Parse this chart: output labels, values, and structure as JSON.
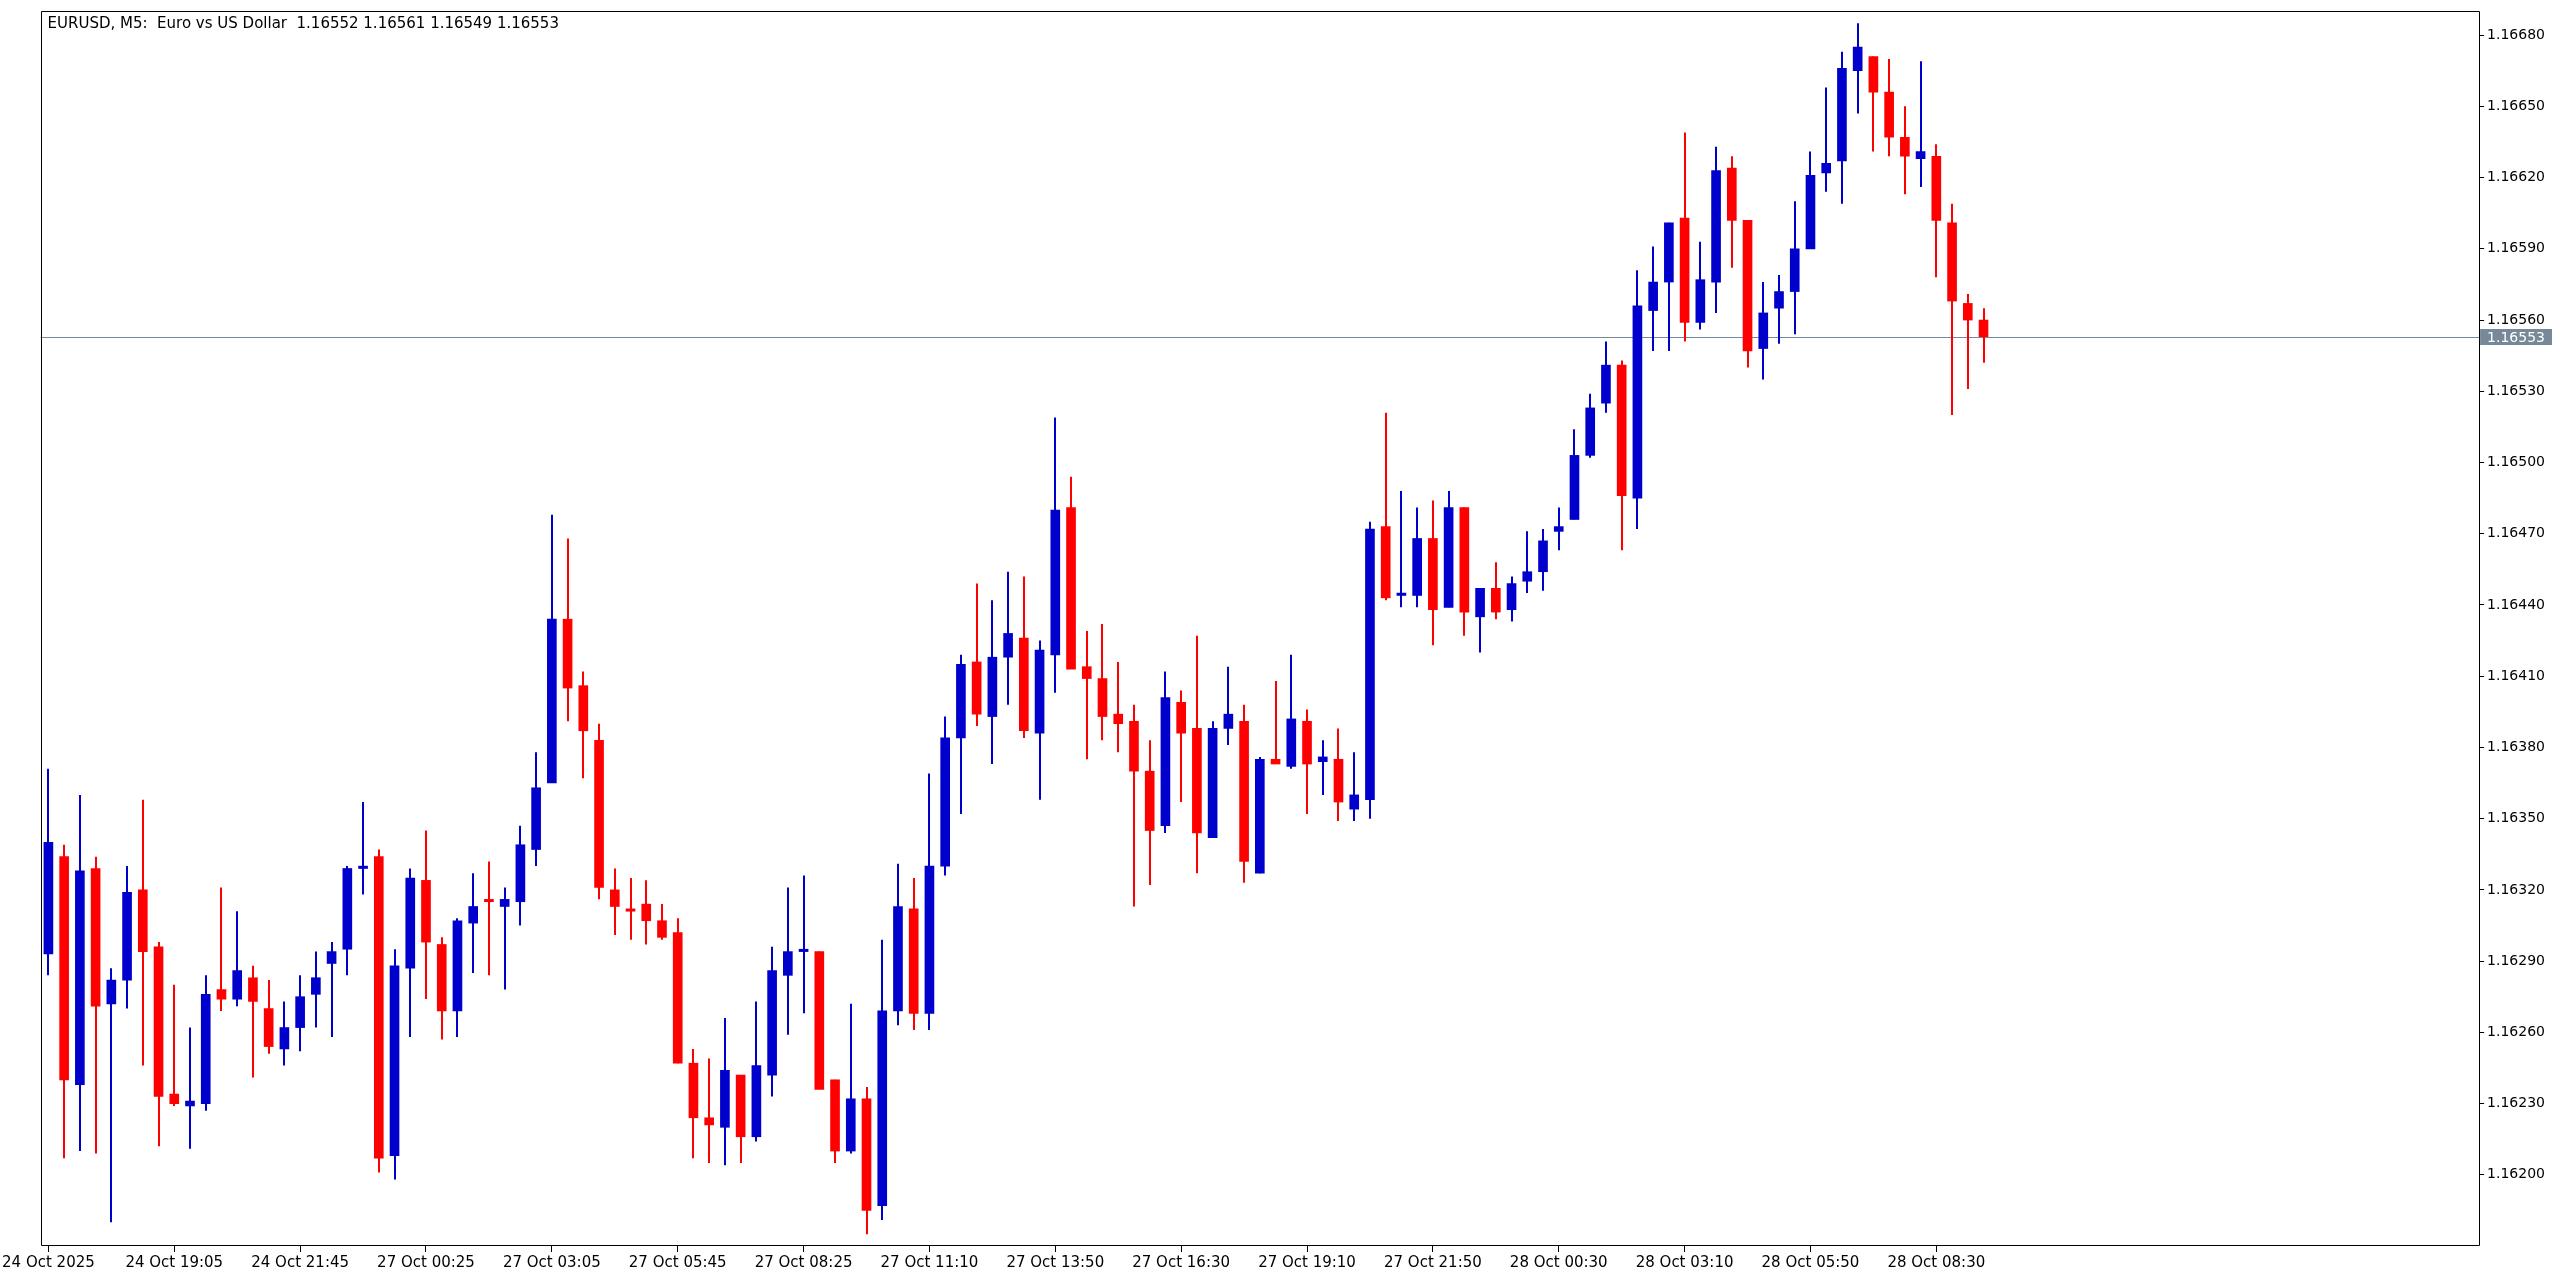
{
  "chart_data": {
    "type": "candlestick",
    "title": "EURUSD, M5:  Euro vs US Dollar  1.16552 1.16561 1.16549 1.16553",
    "categories": [
      "24 Oct 2025",
      null,
      null,
      null,
      null,
      null,
      null,
      null,
      "24 Oct 19:05",
      null,
      null,
      null,
      null,
      null,
      null,
      null,
      "24 Oct 21:45",
      null,
      null,
      null,
      null,
      null,
      null,
      null,
      "27 Oct 00:25",
      null,
      null,
      null,
      null,
      null,
      null,
      null,
      "27 Oct 03:05",
      null,
      null,
      null,
      null,
      null,
      null,
      null,
      "27 Oct 05:45",
      null,
      null,
      null,
      null,
      null,
      null,
      null,
      "27 Oct 08:25",
      null,
      null,
      null,
      null,
      null,
      null,
      null,
      "27 Oct 11:10",
      null,
      null,
      null,
      null,
      null,
      null,
      null,
      "27 Oct 13:50",
      null,
      null,
      null,
      null,
      null,
      null,
      null,
      "27 Oct 16:30",
      null,
      null,
      null,
      null,
      null,
      null,
      null,
      "27 Oct 19:10",
      null,
      null,
      null,
      null,
      null,
      null,
      null,
      "27 Oct 21:50",
      null,
      null,
      null,
      null,
      null,
      null,
      null,
      "28 Oct 00:30",
      null,
      null,
      null,
      null,
      null,
      null,
      null,
      "28 Oct 03:10",
      null,
      null,
      null,
      null,
      null,
      null,
      null,
      "28 Oct 05:50",
      null,
      null,
      null,
      null,
      null,
      null,
      null,
      "28 Oct 08:30",
      null,
      null,
      null,
      null,
      null,
      null,
      null,
      null,
      null,
      null,
      null,
      null,
      null,
      null,
      null,
      null,
      null,
      null,
      null,
      null,
      null,
      null,
      null,
      null,
      null,
      null,
      null,
      null,
      null,
      null,
      null,
      null,
      null,
      null
    ],
    "ohlc": [
      [
        1.16293,
        1.16371,
        1.16284,
        1.1634
      ],
      [
        1.16334,
        1.16339,
        1.16207,
        1.1624
      ],
      [
        1.16238,
        1.1636,
        1.1621,
        1.16328
      ],
      [
        1.16329,
        1.16334,
        1.16209,
        1.16271
      ],
      [
        1.16272,
        1.16287,
        1.1618,
        1.16282
      ],
      [
        1.16282,
        1.1633,
        1.1627,
        1.16319
      ],
      [
        1.1632,
        1.16358,
        1.16246,
        1.16294
      ],
      [
        1.16296,
        1.16298,
        1.16212,
        1.16233
      ],
      [
        1.16234,
        1.1628,
        1.16229,
        1.1623
      ],
      [
        1.16229,
        1.16262,
        1.16211,
        1.16231
      ],
      [
        1.1623,
        1.16284,
        1.16227,
        1.16276
      ],
      [
        1.16278,
        1.16321,
        1.16269,
        1.16274
      ],
      [
        1.16274,
        1.16311,
        1.16271,
        1.16286
      ],
      [
        1.16283,
        1.16288,
        1.16241,
        1.16273
      ],
      [
        1.1627,
        1.16282,
        1.16251,
        1.16254
      ],
      [
        1.16253,
        1.16273,
        1.16246,
        1.16262
      ],
      [
        1.16262,
        1.16284,
        1.16252,
        1.16275
      ],
      [
        1.16276,
        1.16294,
        1.16262,
        1.16283
      ],
      [
        1.16289,
        1.16298,
        1.16258,
        1.16294
      ],
      [
        1.16295,
        1.1633,
        1.16284,
        1.16329
      ],
      [
        1.16329,
        1.16357,
        1.16318,
        1.1633
      ],
      [
        1.16334,
        1.16337,
        1.16201,
        1.16207
      ],
      [
        1.16208,
        1.16295,
        1.16198,
        1.16288
      ],
      [
        1.16287,
        1.16329,
        1.16258,
        1.16325
      ],
      [
        1.16324,
        1.16345,
        1.16274,
        1.16298
      ],
      [
        1.16297,
        1.163,
        1.16257,
        1.16269
      ],
      [
        1.16269,
        1.16308,
        1.16258,
        1.16307
      ],
      [
        1.16306,
        1.16327,
        1.16285,
        1.16313
      ],
      [
        1.16316,
        1.16332,
        1.16284,
        1.16315
      ],
      [
        1.16313,
        1.16321,
        1.16278,
        1.16316
      ],
      [
        1.16315,
        1.16347,
        1.16305,
        1.16339
      ],
      [
        1.16337,
        1.16378,
        1.1633,
        1.16363
      ],
      [
        1.16365,
        1.16478,
        1.16365,
        1.16434
      ],
      [
        1.16434,
        1.16468,
        1.16391,
        1.16405
      ],
      [
        1.16406,
        1.16412,
        1.16367,
        1.16387
      ],
      [
        1.16383,
        1.1639,
        1.16316,
        1.16321
      ],
      [
        1.1632,
        1.16329,
        1.16301,
        1.16313
      ],
      [
        1.16312,
        1.16325,
        1.16299,
        1.16311
      ],
      [
        1.16314,
        1.16324,
        1.16297,
        1.16307
      ],
      [
        1.16307,
        1.16314,
        1.16299,
        1.163
      ],
      [
        1.16302,
        1.16308,
        1.16247,
        1.16247
      ],
      [
        1.16247,
        1.16253,
        1.16207,
        1.16224
      ],
      [
        1.16224,
        1.16249,
        1.16205,
        1.16221
      ],
      [
        1.1622,
        1.16266,
        1.16204,
        1.16244
      ],
      [
        1.16242,
        1.16242,
        1.16205,
        1.16216
      ],
      [
        1.16216,
        1.16273,
        1.16214,
        1.16246
      ],
      [
        1.16242,
        1.16296,
        1.16233,
        1.16286
      ],
      [
        1.16284,
        1.16321,
        1.16259,
        1.16294
      ],
      [
        1.16294,
        1.16326,
        1.16268,
        1.16295
      ],
      [
        1.16294,
        1.16294,
        1.16236,
        1.16236
      ],
      [
        1.1624,
        1.1624,
        1.16205,
        1.1621
      ],
      [
        1.1621,
        1.16272,
        1.16209,
        1.16232
      ],
      [
        1.16232,
        1.16237,
        1.16175,
        1.16185
      ],
      [
        1.16187,
        1.16299,
        1.16181,
        1.16269
      ],
      [
        1.16269,
        1.16331,
        1.16263,
        1.16313
      ],
      [
        1.16312,
        1.16325,
        1.16261,
        1.16268
      ],
      [
        1.16268,
        1.16369,
        1.16261,
        1.1633
      ],
      [
        1.1633,
        1.16393,
        1.16326,
        1.16384
      ],
      [
        1.16384,
        1.16419,
        1.16352,
        1.16415
      ],
      [
        1.16416,
        1.16449,
        1.16389,
        1.16394
      ],
      [
        1.16393,
        1.16442,
        1.16373,
        1.16418
      ],
      [
        1.16418,
        1.16454,
        1.16398,
        1.16428
      ],
      [
        1.16426,
        1.16452,
        1.16384,
        1.16387
      ],
      [
        1.16386,
        1.16425,
        1.16358,
        1.16421
      ],
      [
        1.16419,
        1.16519,
        1.16403,
        1.1648
      ],
      [
        1.16481,
        1.16494,
        1.16413,
        1.16413
      ],
      [
        1.16414,
        1.16429,
        1.16375,
        1.16409
      ],
      [
        1.16409,
        1.16432,
        1.16383,
        1.16393
      ],
      [
        1.16394,
        1.16416,
        1.16378,
        1.1639
      ],
      [
        1.16391,
        1.16398,
        1.16313,
        1.1637
      ],
      [
        1.1637,
        1.16383,
        1.16322,
        1.16345
      ],
      [
        1.16347,
        1.16412,
        1.16344,
        1.16401
      ],
      [
        1.16399,
        1.16404,
        1.16357,
        1.16386
      ],
      [
        1.16388,
        1.16427,
        1.16327,
        1.16344
      ],
      [
        1.16342,
        1.16391,
        1.16342,
        1.16388
      ],
      [
        1.16388,
        1.16414,
        1.16381,
        1.16394
      ],
      [
        1.16391,
        1.16398,
        1.16323,
        1.16332
      ],
      [
        1.16327,
        1.16376,
        1.16327,
        1.16375
      ],
      [
        1.16375,
        1.16408,
        1.16373,
        1.16373
      ],
      [
        1.16372,
        1.16419,
        1.16371,
        1.16392
      ],
      [
        1.16391,
        1.16396,
        1.16352,
        1.16373
      ],
      [
        1.16374,
        1.16383,
        1.1636,
        1.16376
      ],
      [
        1.16375,
        1.16388,
        1.16349,
        1.16357
      ],
      [
        1.16354,
        1.16378,
        1.16349,
        1.1636
      ],
      [
        1.16358,
        1.16475,
        1.1635,
        1.16472
      ],
      [
        1.16473,
        1.16521,
        1.16442,
        1.16443
      ],
      [
        1.16444,
        1.16488,
        1.16439,
        1.16445
      ],
      [
        1.16444,
        1.16481,
        1.16439,
        1.16468
      ],
      [
        1.16468,
        1.16484,
        1.16423,
        1.16438
      ],
      [
        1.16439,
        1.16488,
        1.16439,
        1.16481
      ],
      [
        1.16481,
        1.16481,
        1.16427,
        1.16437
      ],
      [
        1.16435,
        1.16447,
        1.1642,
        1.16447
      ],
      [
        1.16447,
        1.16458,
        1.16434,
        1.16437
      ],
      [
        1.16438,
        1.16452,
        1.16433,
        1.16449
      ],
      [
        1.1645,
        1.16471,
        1.16445,
        1.16454
      ],
      [
        1.16454,
        1.16472,
        1.16446,
        1.16467
      ],
      [
        1.16471,
        1.16481,
        1.16463,
        1.16473
      ],
      [
        1.16476,
        1.16514,
        1.16476,
        1.16503
      ],
      [
        1.16503,
        1.16529,
        1.16502,
        1.16523
      ],
      [
        1.16525,
        1.16551,
        1.16521,
        1.16541
      ],
      [
        1.16541,
        1.16543,
        1.16463,
        1.16486
      ],
      [
        1.16485,
        1.16581,
        1.16472,
        1.16566
      ],
      [
        1.16564,
        1.16591,
        1.16547,
        1.16576
      ],
      [
        1.16576,
        1.16601,
        1.16547,
        1.16601
      ],
      [
        1.16603,
        1.16639,
        1.16551,
        1.16559
      ],
      [
        1.16559,
        1.16593,
        1.16556,
        1.16577
      ],
      [
        1.16576,
        1.16633,
        1.16563,
        1.16623
      ],
      [
        1.16624,
        1.16629,
        1.16582,
        1.16602
      ],
      [
        1.16602,
        1.16602,
        1.1654,
        1.16547
      ],
      [
        1.16548,
        1.16576,
        1.16535,
        1.16563
      ],
      [
        1.16565,
        1.16579,
        1.1655,
        1.16572
      ],
      [
        1.16572,
        1.1661,
        1.16554,
        1.1659
      ],
      [
        1.1659,
        1.16631,
        1.1659,
        1.16621
      ],
      [
        1.16622,
        1.16658,
        1.16614,
        1.16626
      ],
      [
        1.16627,
        1.16673,
        1.16609,
        1.16666
      ],
      [
        1.16665,
        1.16685,
        1.16647,
        1.16675
      ],
      [
        1.16671,
        1.16671,
        1.16631,
        1.16656
      ],
      [
        1.16656,
        1.1667,
        1.16629,
        1.16637
      ],
      [
        1.16637,
        1.1665,
        1.16613,
        1.16629
      ],
      [
        1.16628,
        1.16669,
        1.16616,
        1.16631
      ],
      [
        1.16629,
        1.16634,
        1.16578,
        1.16602
      ],
      [
        1.16601,
        1.16609,
        1.1652,
        1.16568
      ],
      [
        1.16567,
        1.16571,
        1.16531,
        1.1656
      ],
      [
        1.1656,
        1.16565,
        1.16542,
        1.16553
      ],
      null,
      null,
      null,
      null,
      null,
      null,
      null,
      null,
      null,
      null,
      null,
      null,
      null,
      null,
      null,
      null,
      null,
      null,
      null,
      null,
      null,
      null,
      null,
      null,
      null,
      null,
      null,
      null,
      null,
      null,
      null
    ],
    "colors": [
      "#0000cd",
      "#ff0000",
      "#0000cd",
      "#ff0000",
      "#0000cd",
      "#0000cd",
      "#ff0000",
      "#ff0000",
      "#ff0000",
      "#0000cd",
      "#0000cd",
      "#ff0000",
      "#0000cd",
      "#ff0000",
      "#ff0000",
      "#0000cd",
      "#0000cd",
      "#0000cd",
      "#0000cd",
      "#0000cd",
      "#0000cd",
      "#ff0000",
      "#0000cd",
      "#0000cd",
      "#ff0000",
      "#ff0000",
      "#0000cd",
      "#0000cd",
      "#ff0000",
      "#0000cd",
      "#0000cd",
      "#0000cd",
      "#0000cd",
      "#ff0000",
      "#ff0000",
      "#ff0000",
      "#ff0000",
      "#ff0000",
      "#ff0000",
      "#ff0000",
      "#ff0000",
      "#ff0000",
      "#ff0000",
      "#0000cd",
      "#ff0000",
      "#0000cd",
      "#0000cd",
      "#0000cd",
      "#0000cd",
      "#ff0000",
      "#ff0000",
      "#0000cd",
      "#ff0000",
      "#0000cd",
      "#0000cd",
      "#ff0000",
      "#0000cd",
      "#0000cd",
      "#0000cd",
      "#ff0000",
      "#0000cd",
      "#0000cd",
      "#ff0000",
      "#0000cd",
      "#0000cd",
      "#ff0000",
      "#ff0000",
      "#ff0000",
      "#ff0000",
      "#ff0000",
      "#ff0000",
      "#0000cd",
      "#ff0000",
      "#ff0000",
      "#0000cd",
      "#0000cd",
      "#ff0000",
      "#0000cd",
      "#ff0000",
      "#0000cd",
      "#ff0000",
      "#0000cd",
      "#ff0000",
      "#0000cd",
      "#0000cd",
      "#ff0000",
      "#0000cd",
      "#0000cd",
      "#ff0000",
      "#0000cd",
      "#ff0000",
      "#0000cd",
      "#ff0000",
      "#0000cd",
      "#0000cd",
      "#0000cd",
      "#0000cd",
      "#0000cd",
      "#0000cd",
      "#0000cd",
      "#ff0000",
      "#0000cd",
      "#0000cd",
      "#0000cd",
      "#ff0000",
      "#0000cd",
      "#0000cd",
      "#ff0000",
      "#ff0000",
      "#0000cd",
      "#0000cd",
      "#0000cd",
      "#0000cd",
      "#0000cd",
      "#0000cd",
      "#0000cd",
      "#ff0000",
      "#ff0000",
      "#ff0000",
      "#0000cd",
      "#ff0000",
      "#ff0000",
      "#ff0000",
      "#ff0000",
      null,
      null,
      null,
      null,
      null,
      null,
      null,
      null,
      null,
      null,
      null,
      null,
      null,
      null,
      null,
      null,
      null,
      null,
      null,
      null,
      null,
      null,
      null,
      null,
      null,
      null,
      null,
      null,
      null,
      null,
      null
    ],
    "ylim": [
      1.1617,
      1.1669
    ],
    "yticks": [
      {
        "value": 1.162,
        "label": "1.16200"
      },
      {
        "value": 1.1623,
        "label": "1.16230"
      },
      {
        "value": 1.1626,
        "label": "1.16260"
      },
      {
        "value": 1.1629,
        "label": "1.16290"
      },
      {
        "value": 1.1632,
        "label": "1.16320"
      },
      {
        "value": 1.1635,
        "label": "1.16350"
      },
      {
        "value": 1.1638,
        "label": "1.16380"
      },
      {
        "value": 1.1641,
        "label": "1.16410"
      },
      {
        "value": 1.1644,
        "label": "1.16440"
      },
      {
        "value": 1.1647,
        "label": "1.16470"
      },
      {
        "value": 1.165,
        "label": "1.16500"
      },
      {
        "value": 1.1653,
        "label": "1.16530"
      },
      {
        "value": 1.1656,
        "label": "1.16560"
      },
      {
        "value": 1.1659,
        "label": "1.16590"
      },
      {
        "value": 1.1662,
        "label": "1.16620"
      },
      {
        "value": 1.1665,
        "label": "1.16650"
      },
      {
        "value": 1.1668,
        "label": "1.16680"
      }
    ],
    "ref_lines": [
      {
        "axis": "y",
        "value": 1.16553,
        "label": "1.16553",
        "color": "#778899"
      }
    ]
  }
}
